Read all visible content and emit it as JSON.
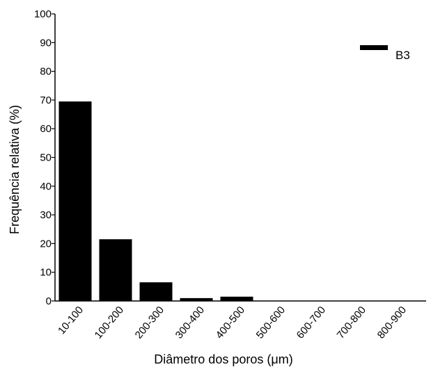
{
  "chart_data": {
    "type": "bar",
    "categories": [
      "10-100",
      "100-200",
      "200-300",
      "300-400",
      "400-500",
      "500-600",
      "600-700",
      "700-800",
      "800-900"
    ],
    "series": [
      {
        "name": "B3",
        "values": [
          69.5,
          21.5,
          6.5,
          1.0,
          1.5,
          0,
          0,
          0,
          0
        ],
        "color": "#000000"
      }
    ],
    "xlabel": "Diâmetro dos poros (μm)",
    "ylabel": "Frequência relativa (%)",
    "ylim": [
      0,
      100
    ],
    "yticks": [
      "0",
      "10",
      "20",
      "30",
      "40",
      "50",
      "60",
      "70",
      "80",
      "90",
      "100"
    ],
    "grid": false,
    "legend": {
      "position": "top-right",
      "label": "B3"
    }
  }
}
